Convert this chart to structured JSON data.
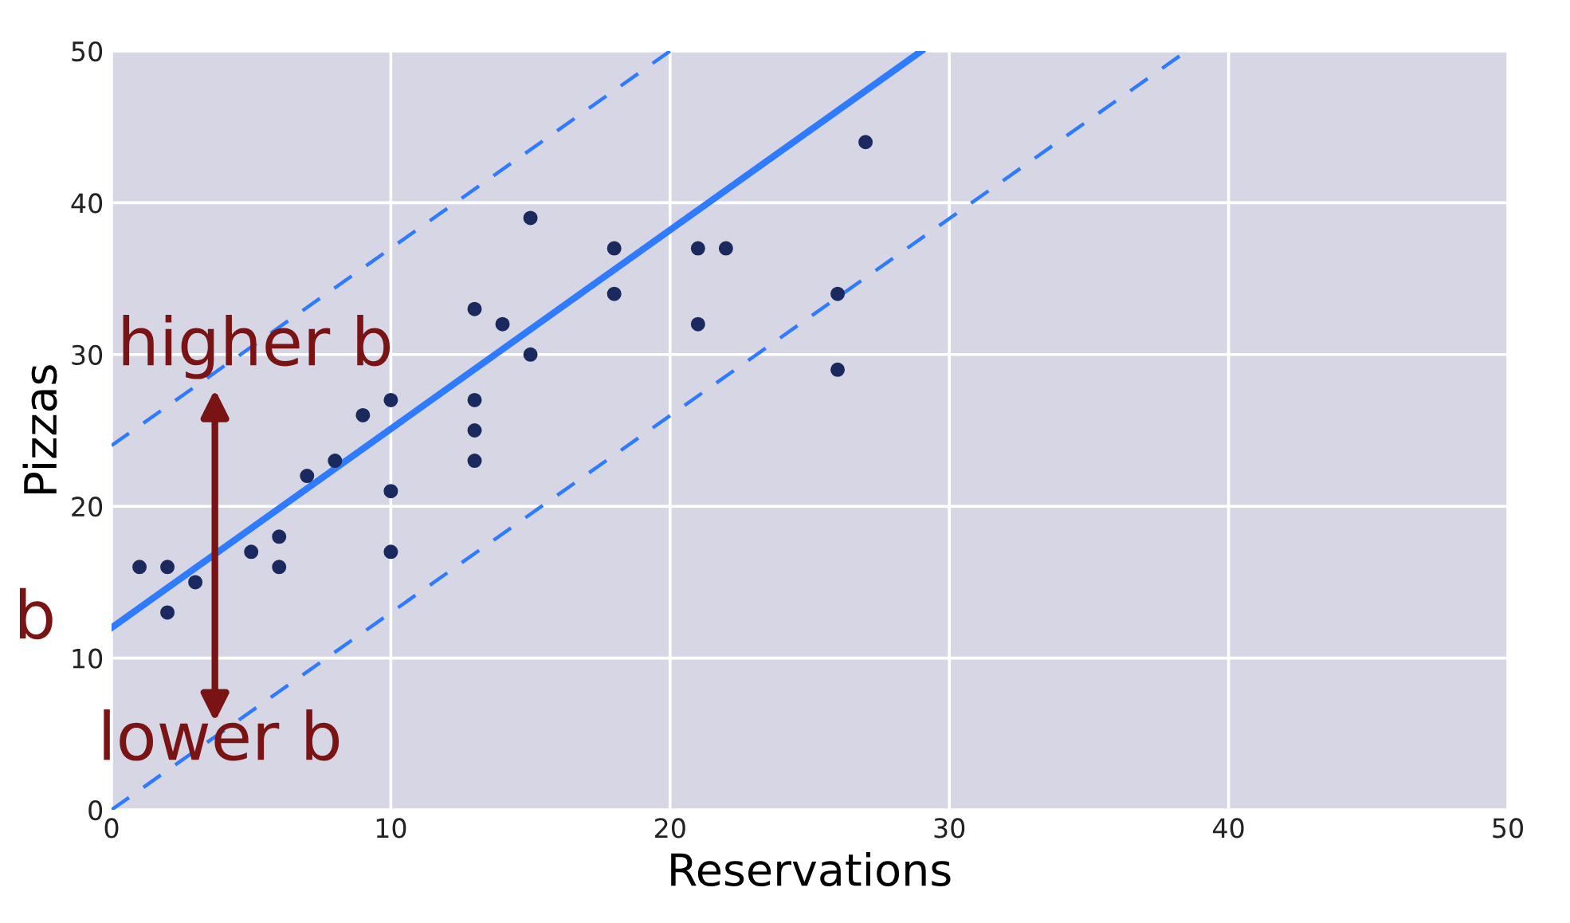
{
  "chart_data": {
    "type": "scatter",
    "xlabel": "Reservations",
    "ylabel": "Pizzas",
    "xlim": [
      0,
      50
    ],
    "ylim": [
      0,
      50
    ],
    "xticks": [
      0,
      10,
      20,
      30,
      40,
      50
    ],
    "yticks": [
      0,
      10,
      20,
      30,
      40,
      50
    ],
    "grid": true,
    "series": [
      {
        "color": "#1a2a5e",
        "marker": "circle",
        "x": [
          1,
          2,
          2,
          3,
          5,
          6,
          6,
          7,
          8,
          9,
          10,
          10,
          10,
          13,
          13,
          13,
          13,
          14,
          15,
          15,
          18,
          18,
          21,
          21,
          22,
          26,
          26,
          27
        ],
        "values": [
          16,
          16,
          13,
          15,
          17,
          18,
          16,
          22,
          23,
          26,
          27,
          21,
          17,
          33,
          27,
          25,
          23,
          32,
          39,
          30,
          37,
          34,
          37,
          32,
          37,
          34,
          29,
          44
        ]
      },
      {
        "type": "line",
        "color": "#2f7bff",
        "line_style": "solid",
        "x": [
          0,
          29
        ],
        "values": [
          12,
          50
        ]
      },
      {
        "type": "line",
        "color": "#2f7bff",
        "line_style": "dashed",
        "x": [
          0,
          20
        ],
        "values": [
          24,
          50
        ]
      },
      {
        "type": "line",
        "color": "#2f7bff",
        "line_style": "dashed",
        "x": [
          0,
          38.5
        ],
        "values": [
          0,
          50
        ]
      }
    ],
    "annotations": [
      "higher b",
      "b",
      "lower b"
    ]
  }
}
